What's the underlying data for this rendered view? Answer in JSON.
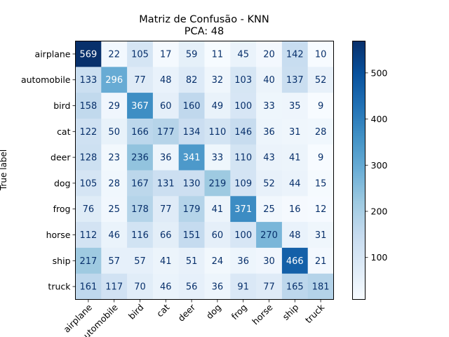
{
  "chart_data": {
    "type": "heatmap",
    "title_lines": [
      "Matriz de Confusão - KNN",
      "PCA: 48"
    ],
    "ylabel": "True label",
    "xlabel": "",
    "row_labels": [
      "airplane",
      "automobile",
      "bird",
      "cat",
      "deer",
      "dog",
      "frog",
      "horse",
      "ship",
      "truck"
    ],
    "col_labels": [
      "airplane",
      "automobile",
      "bird",
      "cat",
      "deer",
      "dog",
      "frog",
      "horse",
      "ship",
      "truck"
    ],
    "values": [
      [
        569,
        22,
        105,
        17,
        59,
        11,
        45,
        20,
        142,
        10
      ],
      [
        133,
        296,
        77,
        48,
        82,
        32,
        103,
        40,
        137,
        52
      ],
      [
        158,
        29,
        367,
        60,
        160,
        49,
        100,
        33,
        35,
        9
      ],
      [
        122,
        50,
        166,
        177,
        134,
        110,
        146,
        36,
        31,
        28
      ],
      [
        128,
        23,
        236,
        36,
        341,
        33,
        110,
        43,
        41,
        9
      ],
      [
        105,
        28,
        167,
        131,
        130,
        219,
        109,
        52,
        44,
        15
      ],
      [
        76,
        25,
        178,
        77,
        179,
        41,
        371,
        25,
        16,
        12
      ],
      [
        112,
        46,
        116,
        66,
        151,
        60,
        100,
        270,
        48,
        31
      ],
      [
        217,
        57,
        57,
        41,
        51,
        24,
        36,
        30,
        466,
        21
      ],
      [
        161,
        117,
        70,
        46,
        56,
        36,
        91,
        77,
        165,
        181
      ]
    ],
    "colormap": "Blues",
    "color_range": [
      9,
      569
    ],
    "colorbar_ticks": [
      100,
      200,
      300,
      400,
      500
    ],
    "grid": false
  }
}
